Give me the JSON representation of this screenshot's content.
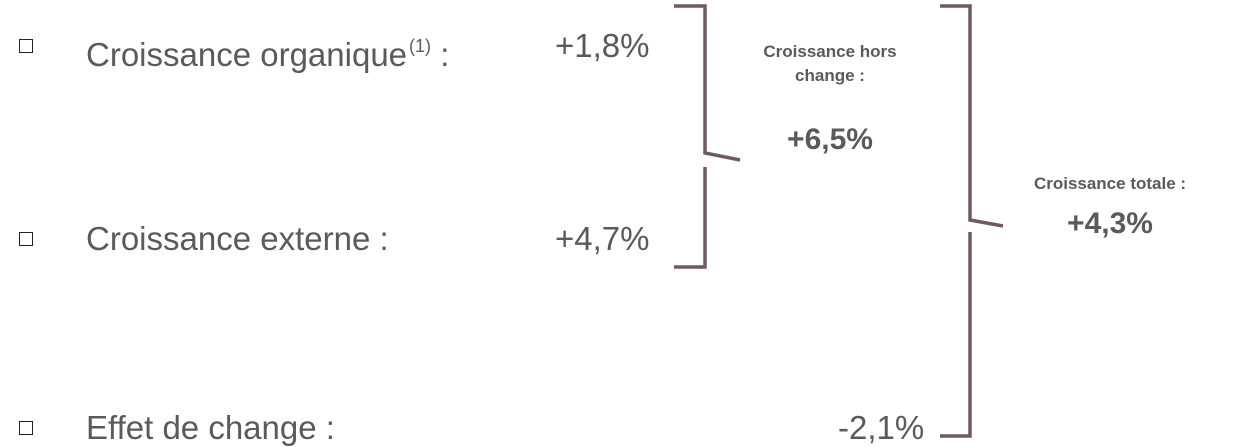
{
  "items": [
    {
      "label": "Croissance organique",
      "footnote": "(1)",
      "colon": " :",
      "value": "+1,8%"
    },
    {
      "label": "Croissance externe :",
      "footnote": "",
      "colon": "",
      "value": "+4,7%"
    },
    {
      "label": "Effet de change :",
      "footnote": "",
      "colon": "",
      "value": "-2,1%"
    }
  ],
  "groups": {
    "hors_change": {
      "title_line1": "Croissance hors",
      "title_line2": "change :",
      "value": "+6,5%"
    },
    "totale": {
      "title": "Croissance totale :",
      "value": "+4,3%"
    }
  },
  "colors": {
    "text": "#5a5a5a",
    "bracket": "#6e5a60",
    "bullet": "#222222"
  }
}
